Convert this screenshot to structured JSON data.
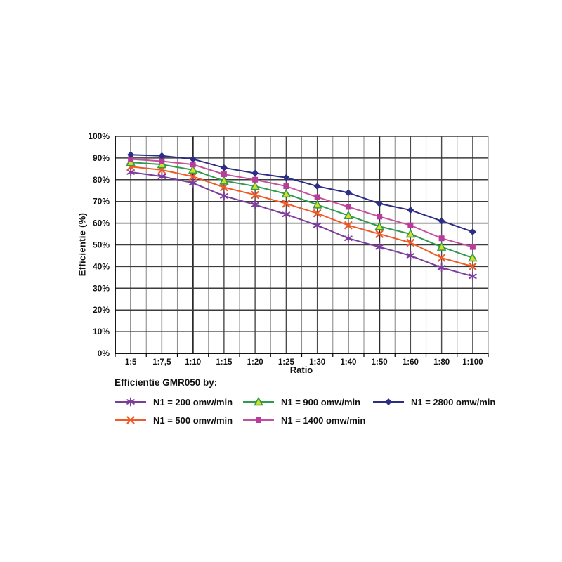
{
  "page": {
    "background": "#ffffff"
  },
  "chart_data": {
    "type": "line",
    "title": "",
    "xlabel": "Ratio",
    "ylabel": "Efficientie (%)",
    "legend_title": "Efficientie GMR050 by:",
    "legend_position": "bottom-left",
    "categories": [
      "1:5",
      "1:7,5",
      "1:10",
      "1:15",
      "1:20",
      "1:25",
      "1:30",
      "1:40",
      "1:50",
      "1:60",
      "1:80",
      "1:100"
    ],
    "y_tick_labels": [
      "0%",
      "10%",
      "20%",
      "30%",
      "40%",
      "50%",
      "60%",
      "70%",
      "80%",
      "90%",
      "100%"
    ],
    "ylim": [
      0,
      100
    ],
    "grid": "horizontal every 10%, vertical at category centers and boundaries",
    "emphasized_gridlines": [
      "1:10",
      "1:50"
    ],
    "axis_color": "#000000",
    "series": [
      {
        "name": "N1 = 200 omw/min",
        "color": "#7b3e98",
        "marker": "asterisk",
        "marker_fill": "#7b3e98",
        "values": [
          83.5,
          81.5,
          78.5,
          72.5,
          68.5,
          64,
          59,
          53,
          49,
          45,
          39.5,
          35.5
        ]
      },
      {
        "name": "N1 = 500 omw/min",
        "color": "#f05a28",
        "marker": "x",
        "marker_fill": "#f05a28",
        "values": [
          86,
          84.5,
          81.5,
          76.5,
          73,
          69,
          64.5,
          59,
          55,
          51,
          44,
          40
        ]
      },
      {
        "name": "N1 = 900 omw/min",
        "color": "#2e9b4e",
        "marker": "triangle-up",
        "marker_fill": "#d7df23",
        "values": [
          88,
          87,
          84.5,
          79.5,
          77,
          73.5,
          68.5,
          63.5,
          58.5,
          55,
          49,
          44
        ]
      },
      {
        "name": "N1 = 1400 omw/min",
        "color": "#c4509f",
        "marker": "square",
        "marker_fill": "#b83d9b",
        "values": [
          89.5,
          88.5,
          87,
          82.5,
          80,
          77,
          72,
          67.5,
          63,
          59,
          53,
          49
        ]
      },
      {
        "name": "N1 = 2800 omw/min",
        "color": "#2d2d86",
        "marker": "diamond",
        "marker_fill": "#2d2d86",
        "values": [
          91.5,
          91,
          89.5,
          85.5,
          83,
          81,
          77,
          74,
          69,
          66,
          61,
          56
        ]
      }
    ]
  }
}
